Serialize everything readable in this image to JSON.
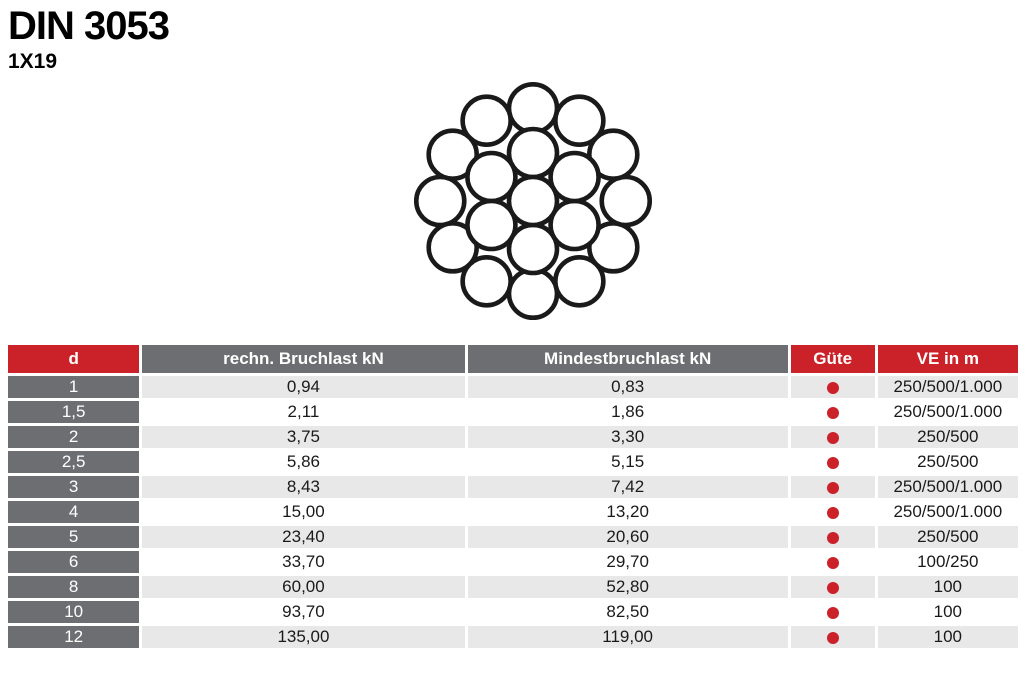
{
  "page": {
    "title": "DIN 3053",
    "subtitle": "1X19"
  },
  "colors": {
    "accent_red": "#cb2229",
    "header_gray": "#6d6e71",
    "row_stripe_gray": "#e8e8e9",
    "wire_stroke": "#1a1a1a"
  },
  "diagram": {
    "name": "wire-rope-cross-section-1x19",
    "total_wires": 19,
    "wire_radius": 24,
    "stroke_width": 4.6,
    "start_angle_deg": 90,
    "rings": [
      {
        "count": 12,
        "radius_factor": 3.8637
      },
      {
        "count": 6,
        "radius_factor": 2
      },
      {
        "count": 1,
        "radius_factor": 0
      }
    ]
  },
  "table": {
    "headers": [
      {
        "label": "d",
        "bg": "red"
      },
      {
        "label": "rechn. Bruchlast kN",
        "bg": "gray"
      },
      {
        "label": "Mindestbruchlast kN",
        "bg": "gray"
      },
      {
        "label": "Güte",
        "bg": "red"
      },
      {
        "label": "VE in m",
        "bg": "red"
      }
    ],
    "rows": [
      {
        "d": "1",
        "rechn": "0,94",
        "mindest": "0,83",
        "guete_dot": true,
        "ve": "250/500/1.000"
      },
      {
        "d": "1,5",
        "rechn": "2,11",
        "mindest": "1,86",
        "guete_dot": true,
        "ve": "250/500/1.000"
      },
      {
        "d": "2",
        "rechn": "3,75",
        "mindest": "3,30",
        "guete_dot": true,
        "ve": "250/500"
      },
      {
        "d": "2,5",
        "rechn": "5,86",
        "mindest": "5,15",
        "guete_dot": true,
        "ve": "250/500"
      },
      {
        "d": "3",
        "rechn": "8,43",
        "mindest": "7,42",
        "guete_dot": true,
        "ve": "250/500/1.000"
      },
      {
        "d": "4",
        "rechn": "15,00",
        "mindest": "13,20",
        "guete_dot": true,
        "ve": "250/500/1.000"
      },
      {
        "d": "5",
        "rechn": "23,40",
        "mindest": "20,60",
        "guete_dot": true,
        "ve": "250/500"
      },
      {
        "d": "6",
        "rechn": "33,70",
        "mindest": "29,70",
        "guete_dot": true,
        "ve": "100/250"
      },
      {
        "d": "8",
        "rechn": "60,00",
        "mindest": "52,80",
        "guete_dot": true,
        "ve": "100"
      },
      {
        "d": "10",
        "rechn": "93,70",
        "mindest": "82,50",
        "guete_dot": true,
        "ve": "100"
      },
      {
        "d": "12",
        "rechn": "135,00",
        "mindest": "119,00",
        "guete_dot": true,
        "ve": "100"
      }
    ]
  }
}
